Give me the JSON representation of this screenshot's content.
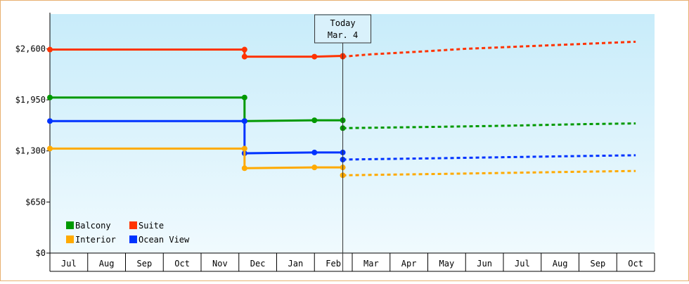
{
  "chart_data": {
    "type": "line",
    "title": "",
    "xlabel": "",
    "ylabel": "",
    "ylim": [
      0,
      3042
    ],
    "y_ticks": [
      {
        "value": 0,
        "label": "$0"
      },
      {
        "value": 650,
        "label": "$650"
      },
      {
        "value": 1300,
        "label": "$1,300"
      },
      {
        "value": 1950,
        "label": "$1,950"
      },
      {
        "value": 2600,
        "label": "$2,600"
      }
    ],
    "x_ticks": [
      "Jul",
      "Aug",
      "Sep",
      "Oct",
      "Nov",
      "Dec",
      "Jan",
      "Feb",
      "Mar",
      "Apr",
      "May",
      "Jun",
      "Jul",
      "Aug",
      "Sep",
      "Oct"
    ],
    "today_marker": {
      "line1": "Today",
      "line2": "Mar. 4",
      "month_index": 7.75
    },
    "legend_position": "bottom-left",
    "background_gradient": [
      "#c8ecfa",
      "#f0fafe"
    ],
    "series": [
      {
        "name": "Suite",
        "color": "#ff3300",
        "points": [
          [
            0,
            2590
          ],
          [
            5.15,
            2590
          ],
          [
            5.15,
            2500
          ],
          [
            7.0,
            2500
          ],
          [
            7.75,
            2510
          ]
        ],
        "forecast": [
          [
            7.75,
            2500
          ],
          [
            8.5,
            2530
          ],
          [
            10,
            2570
          ],
          [
            11,
            2600
          ],
          [
            12.5,
            2630
          ],
          [
            14,
            2660
          ],
          [
            15.5,
            2690
          ]
        ]
      },
      {
        "name": "Balcony",
        "color": "#009900",
        "points": [
          [
            0,
            1980
          ],
          [
            5.15,
            1980
          ],
          [
            5.15,
            1680
          ],
          [
            7.0,
            1690
          ],
          [
            7.75,
            1690
          ]
        ],
        "forecast": [
          [
            7.75,
            1590
          ],
          [
            8.5,
            1595
          ],
          [
            10,
            1605
          ],
          [
            12,
            1620
          ],
          [
            14,
            1640
          ],
          [
            15.5,
            1650
          ]
        ]
      },
      {
        "name": "Ocean View",
        "color": "#0033ff",
        "points": [
          [
            0,
            1680
          ],
          [
            5.15,
            1680
          ],
          [
            5.15,
            1270
          ],
          [
            7.0,
            1280
          ],
          [
            7.75,
            1280
          ]
        ],
        "forecast": [
          [
            7.75,
            1190
          ],
          [
            8.5,
            1195
          ],
          [
            10,
            1205
          ],
          [
            12,
            1220
          ],
          [
            14,
            1235
          ],
          [
            15.5,
            1245
          ]
        ]
      },
      {
        "name": "Interior",
        "color": "#ffaa00",
        "points": [
          [
            0,
            1330
          ],
          [
            5.15,
            1330
          ],
          [
            5.15,
            1080
          ],
          [
            7.0,
            1090
          ],
          [
            7.75,
            1090
          ]
        ],
        "forecast": [
          [
            7.75,
            990
          ],
          [
            8.5,
            995
          ],
          [
            10,
            1005
          ],
          [
            12,
            1020
          ],
          [
            14,
            1035
          ],
          [
            15.5,
            1045
          ]
        ]
      }
    ],
    "markers": [
      {
        "series": "Suite",
        "x": [
          0,
          5.15,
          5.15,
          7.0,
          7.75
        ]
      },
      {
        "series": "Balcony",
        "x": [
          0,
          5.15,
          5.15,
          7.0,
          7.75,
          7.75
        ]
      },
      {
        "series": "Ocean View",
        "x": [
          5.15,
          7.0,
          7.75,
          7.75
        ]
      },
      {
        "series": "Interior",
        "x": [
          5.15,
          7.0,
          7.75,
          7.75
        ]
      }
    ]
  }
}
